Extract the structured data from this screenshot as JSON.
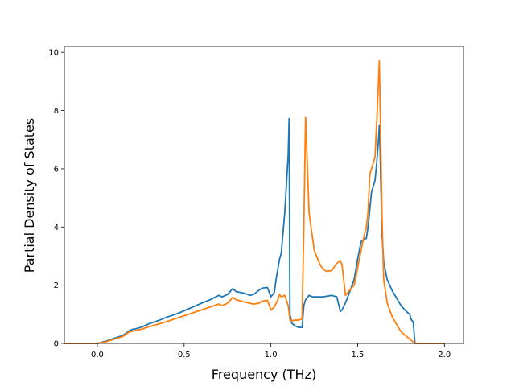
{
  "chart_data": {
    "type": "line",
    "title": "",
    "xlabel": "Frequency (THz)",
    "ylabel": "Partial Density of States",
    "xlim": [
      -0.19,
      2.11
    ],
    "ylim": [
      0,
      10.2
    ],
    "xticks": [
      0.0,
      0.5,
      1.0,
      1.5,
      2.0
    ],
    "xtick_labels": [
      "0.0",
      "0.5",
      "1.0",
      "1.5",
      "2.0"
    ],
    "yticks": [
      0,
      2,
      4,
      6,
      8,
      10
    ],
    "ytick_labels": [
      "0",
      "2",
      "4",
      "6",
      "8",
      "10"
    ],
    "grid": false,
    "legend": "none",
    "series": [
      {
        "color": "#1f77b4",
        "x": [
          -0.19,
          0.0,
          0.05,
          0.1,
          0.15,
          0.18,
          0.2,
          0.22,
          0.25,
          0.3,
          0.35,
          0.4,
          0.45,
          0.5,
          0.55,
          0.6,
          0.65,
          0.7,
          0.72,
          0.75,
          0.78,
          0.8,
          0.85,
          0.88,
          0.9,
          0.93,
          0.95,
          0.98,
          1.0,
          1.02,
          1.03,
          1.05,
          1.06,
          1.08,
          1.1,
          1.105,
          1.11,
          1.12,
          1.14,
          1.16,
          1.18,
          1.19,
          1.2,
          1.22,
          1.24,
          1.26,
          1.3,
          1.35,
          1.38,
          1.4,
          1.41,
          1.43,
          1.45,
          1.48,
          1.5,
          1.52,
          1.54,
          1.55,
          1.56,
          1.58,
          1.6,
          1.61,
          1.62,
          1.625,
          1.63,
          1.64,
          1.65,
          1.67,
          1.7,
          1.73,
          1.75,
          1.78,
          1.8,
          1.81,
          1.82,
          1.83,
          2.0
        ],
        "y": [
          0.0,
          0.0,
          0.08,
          0.18,
          0.28,
          0.42,
          0.48,
          0.5,
          0.55,
          0.68,
          0.78,
          0.9,
          1.0,
          1.12,
          1.25,
          1.38,
          1.5,
          1.65,
          1.6,
          1.68,
          1.88,
          1.78,
          1.72,
          1.65,
          1.68,
          1.82,
          1.9,
          1.92,
          1.6,
          1.75,
          2.2,
          2.9,
          3.1,
          4.5,
          6.5,
          7.72,
          1.0,
          0.7,
          0.6,
          0.55,
          0.55,
          1.3,
          1.5,
          1.65,
          1.6,
          1.6,
          1.6,
          1.65,
          1.6,
          1.1,
          1.15,
          1.4,
          1.7,
          2.2,
          2.9,
          3.5,
          3.6,
          3.6,
          4.0,
          5.2,
          5.6,
          6.2,
          7.0,
          7.5,
          6.5,
          3.8,
          2.8,
          2.2,
          1.8,
          1.5,
          1.3,
          1.1,
          1.0,
          0.8,
          0.75,
          0.0,
          0.0
        ]
      },
      {
        "color": "#ff7f0e",
        "x": [
          -0.19,
          0.0,
          0.05,
          0.1,
          0.15,
          0.18,
          0.2,
          0.22,
          0.25,
          0.3,
          0.35,
          0.4,
          0.45,
          0.5,
          0.55,
          0.6,
          0.65,
          0.7,
          0.72,
          0.75,
          0.78,
          0.8,
          0.85,
          0.88,
          0.9,
          0.93,
          0.95,
          0.98,
          1.0,
          1.02,
          1.04,
          1.05,
          1.06,
          1.08,
          1.1,
          1.11,
          1.12,
          1.14,
          1.16,
          1.18,
          1.19,
          1.2,
          1.205,
          1.22,
          1.25,
          1.28,
          1.3,
          1.32,
          1.35,
          1.38,
          1.4,
          1.41,
          1.43,
          1.45,
          1.48,
          1.5,
          1.53,
          1.55,
          1.56,
          1.57,
          1.58,
          1.6,
          1.61,
          1.62,
          1.625,
          1.63,
          1.64,
          1.65,
          1.67,
          1.7,
          1.73,
          1.75,
          1.78,
          1.8,
          1.82,
          1.84,
          2.0
        ],
        "y": [
          0.0,
          0.0,
          0.06,
          0.15,
          0.25,
          0.38,
          0.42,
          0.44,
          0.48,
          0.58,
          0.66,
          0.75,
          0.85,
          0.95,
          1.05,
          1.15,
          1.25,
          1.35,
          1.3,
          1.38,
          1.58,
          1.5,
          1.42,
          1.38,
          1.35,
          1.38,
          1.45,
          1.48,
          1.15,
          1.25,
          1.5,
          1.68,
          1.6,
          1.65,
          1.3,
          0.8,
          0.78,
          0.8,
          0.8,
          0.85,
          4.0,
          7.78,
          7.0,
          4.5,
          3.2,
          2.75,
          2.55,
          2.48,
          2.5,
          2.75,
          2.85,
          2.7,
          1.65,
          1.8,
          2.0,
          2.6,
          3.5,
          4.0,
          4.5,
          5.8,
          6.0,
          6.4,
          7.6,
          9.0,
          9.72,
          8.0,
          4.5,
          2.2,
          1.4,
          0.9,
          0.6,
          0.4,
          0.25,
          0.15,
          0.05,
          0.0,
          0.0
        ]
      }
    ]
  }
}
